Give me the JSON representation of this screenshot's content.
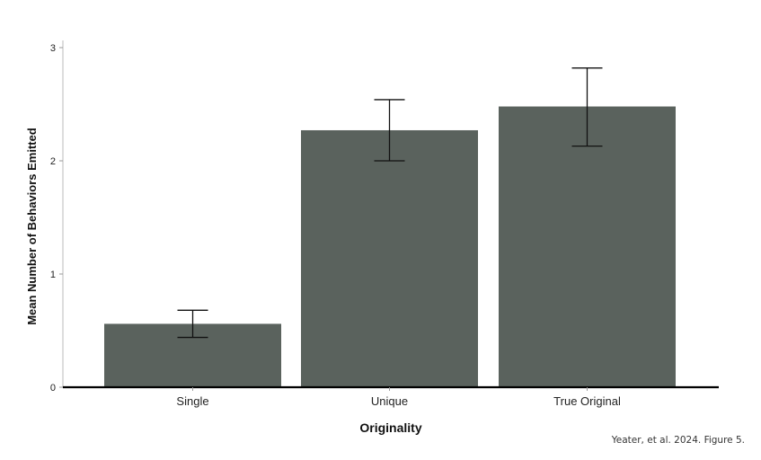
{
  "chart_data": {
    "type": "bar",
    "categories": [
      "Single",
      "Unique",
      "True Original"
    ],
    "values": [
      0.56,
      2.27,
      2.48
    ],
    "error_low": [
      0.44,
      2.0,
      2.13
    ],
    "error_high": [
      0.68,
      2.54,
      2.82
    ],
    "xlabel": "Originality",
    "ylabel": "Mean Number of Behaviors Emitted",
    "ylim": [
      0,
      3
    ],
    "yticks": [
      0,
      1,
      2,
      3
    ],
    "grid": false,
    "bar_color": "#5a625d"
  },
  "citation": "Yeater, et al. 2024. Figure 5."
}
